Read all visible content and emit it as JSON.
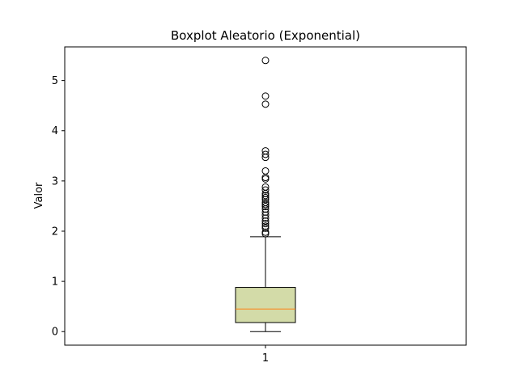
{
  "chart_data": {
    "type": "box",
    "title": "Boxplot Aleatorio (Exponential)",
    "xlabel": "",
    "ylabel": "Valor",
    "ylim": [
      -0.27,
      5.67
    ],
    "yticks": [
      0,
      1,
      2,
      3,
      4,
      5
    ],
    "categories": [
      "1"
    ],
    "box": {
      "whisker_low": 0.0,
      "q1": 0.18,
      "median": 0.45,
      "q3": 0.88,
      "whisker_high": 1.89,
      "fill": "#d3dba8",
      "median_color": "#ff7f0e"
    },
    "outliers": [
      5.4,
      4.69,
      4.53,
      3.6,
      3.53,
      3.47,
      3.2,
      3.07,
      3.04,
      2.88,
      2.82,
      2.75,
      2.71,
      2.67,
      2.63,
      2.57,
      2.53,
      2.49,
      2.44,
      2.38,
      2.32,
      2.26,
      2.2,
      2.15,
      2.1,
      2.06,
      1.98,
      1.95
    ],
    "grid": false,
    "legend": "none"
  }
}
